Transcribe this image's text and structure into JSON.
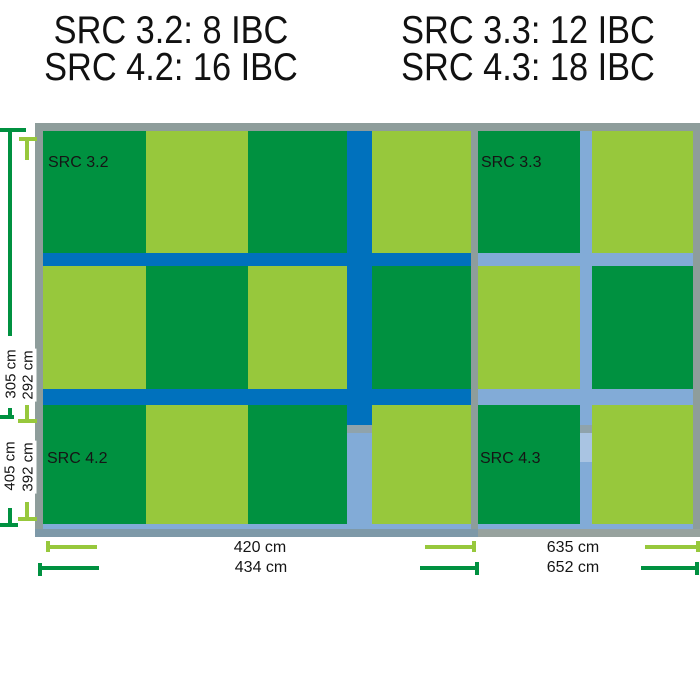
{
  "header": {
    "left": {
      "line1": "SRC 3.2: 8 IBC",
      "line2": "SRC 4.2: 16 IBC"
    },
    "right": {
      "line1": "SRC 3.3: 12 IBC",
      "line2": "SRC 4.3: 18 IBC"
    }
  },
  "panels": {
    "left": {
      "top_label": "SRC 3.2",
      "bottom_label": "SRC 4.2",
      "top_background": "dark_blue",
      "bottom_background": "light_blue",
      "pattern": [
        [
          "dark",
          "light",
          "dark",
          "light"
        ],
        [
          "light",
          "dark",
          "light",
          "dark"
        ],
        [
          "dark",
          "light",
          "dark",
          "light"
        ]
      ],
      "dimensions": {
        "height_outer": "305 cm",
        "height_inner": "292 cm",
        "height_outer_lower": "405 cm",
        "height_inner_lower": "392 cm",
        "width_inner": "420 cm",
        "width_outer": "434 cm"
      }
    },
    "right": {
      "top_label": "SRC 3.3",
      "bottom_label": "SRC 4.3",
      "top_background": "light_blue",
      "bottom_background": "light_blue",
      "pattern": [
        [
          "dark",
          "light"
        ],
        [
          "light",
          "dark"
        ],
        [
          "dark",
          "light"
        ]
      ],
      "dimensions": {
        "width_inner": "635 cm",
        "width_outer": "652 cm"
      }
    }
  },
  "colors": {
    "dark_green": "#009140",
    "light_green": "#97C83C",
    "dark_blue": "#0071BD",
    "light_blue": "#82ABD7",
    "pale_blue": "#A9C4E2",
    "frame_gray": "#8E9D9B",
    "inner_border_gray": "#8FA3AB",
    "bottom_border_left": "#7E99A8",
    "bottom_border_right": "#97A29E",
    "label_text": "#151515"
  }
}
